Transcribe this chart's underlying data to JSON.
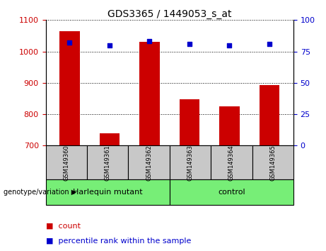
{
  "title": "GDS3365 / 1449053_s_at",
  "samples": [
    "GSM149360",
    "GSM149361",
    "GSM149362",
    "GSM149363",
    "GSM149364",
    "GSM149365"
  ],
  "bar_values": [
    1065,
    740,
    1030,
    848,
    826,
    893
  ],
  "percentile_values": [
    82,
    80,
    83,
    81,
    80,
    81
  ],
  "bar_color": "#cc0000",
  "dot_color": "#0000cc",
  "ylim_left": [
    700,
    1100
  ],
  "ylim_right": [
    0,
    100
  ],
  "yticks_left": [
    700,
    800,
    900,
    1000,
    1100
  ],
  "yticks_right": [
    0,
    25,
    50,
    75,
    100
  ],
  "groups": [
    {
      "label": "Harlequin mutant",
      "n_samples": 3,
      "color": "#77ee77"
    },
    {
      "label": "control",
      "n_samples": 3,
      "color": "#77ee77"
    }
  ],
  "group_label": "genotype/variation ▶",
  "legend_count_label": "count",
  "legend_percentile_label": "percentile rank within the sample",
  "bar_width": 0.5,
  "background_plot": "#ffffff",
  "tick_area_color": "#c8c8c8",
  "group_area_color": "#77ee77"
}
